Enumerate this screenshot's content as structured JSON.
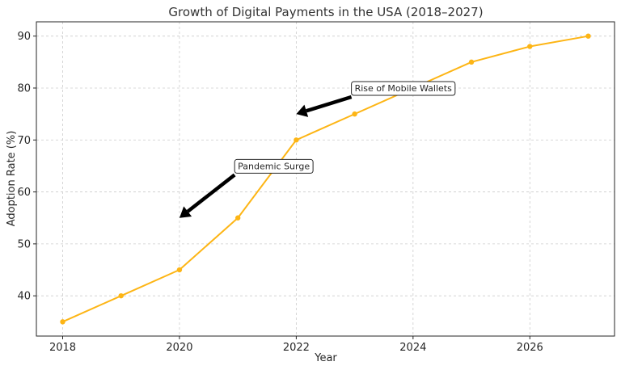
{
  "chart_data": {
    "type": "line",
    "title": "Growth of Digital Payments in the USA (2018–2027)",
    "xlabel": "Year",
    "ylabel": "Adoption Rate (%)",
    "x": [
      2018,
      2019,
      2020,
      2021,
      2022,
      2023,
      2024,
      2025,
      2026,
      2027
    ],
    "series": [
      {
        "values": [
          35,
          40,
          45,
          55,
          70,
          75,
          80,
          85,
          88,
          90
        ],
        "color": "#FDB515"
      }
    ],
    "xlim": [
      2017.55,
      2027.45
    ],
    "ylim": [
      32.25,
      92.75
    ],
    "xticks": [
      2018,
      2020,
      2022,
      2024,
      2026
    ],
    "yticks": [
      40,
      50,
      60,
      70,
      80,
      90
    ],
    "grid": true,
    "annotations": [
      {
        "text": "Pandemic Surge",
        "xy": [
          2020,
          55
        ],
        "xytext": [
          2021,
          65
        ]
      },
      {
        "text": "Rise of Mobile Wallets",
        "xy": [
          2022,
          75
        ],
        "xytext": [
          2023,
          80
        ]
      }
    ]
  }
}
